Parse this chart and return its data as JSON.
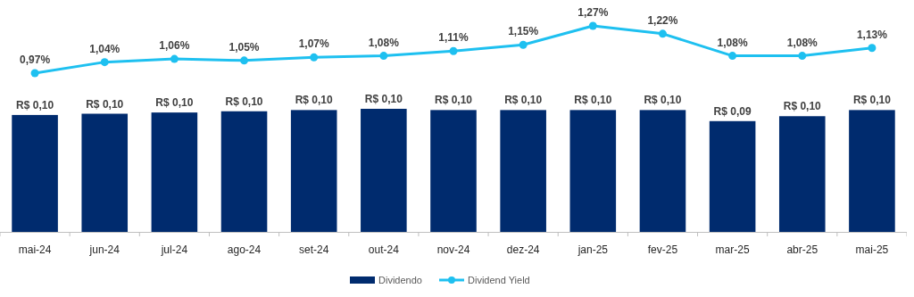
{
  "chart_data": [
    {
      "type": "line",
      "categories": [
        null,
        null,
        null,
        null,
        null,
        null,
        null,
        null,
        null,
        null,
        null,
        null,
        null
      ],
      "series": [
        {
          "name": "Dividend Yield",
          "color": "#1ec0f0",
          "values": [
            0.97,
            1.04,
            1.06,
            1.05,
            1.07,
            1.08,
            1.11,
            1.15,
            1.27,
            1.22,
            1.08,
            1.08,
            1.13
          ],
          "value_labels": [
            "0,97%",
            "1,04%",
            "1,06%",
            "1,05%",
            "1,07%",
            "1,08%",
            "1,11%",
            "1,15%",
            "1,27%",
            "1,22%",
            "1,08%",
            "1,08%",
            "1,13%"
          ]
        }
      ],
      "legend": "bottom",
      "marker": "circle"
    },
    {
      "type": "bar",
      "categories": [
        "mai-24",
        "jun-24",
        "jul-24",
        "ago-24",
        "set-24",
        "out-24",
        "nov-24",
        "dez-24",
        "jan-25",
        "fev-25",
        "mar-25",
        "abr-25",
        "mai-25"
      ],
      "series": [
        {
          "name": "Dividendo",
          "color": "#002b6e",
          "values": [
            0.095,
            0.096,
            0.097,
            0.098,
            0.099,
            0.1,
            0.099,
            0.099,
            0.099,
            0.099,
            0.09,
            0.094,
            0.099
          ],
          "value_labels": [
            "R$ 0,10",
            "R$ 0,10",
            "R$ 0,10",
            "R$ 0,10",
            "R$ 0,10",
            "R$ 0,10",
            "R$ 0,10",
            "R$ 0,10",
            "R$ 0,10",
            "R$ 0,10",
            "R$ 0,09",
            "R$ 0,10",
            "R$ 0,10"
          ]
        }
      ],
      "legend": "bottom"
    }
  ]
}
